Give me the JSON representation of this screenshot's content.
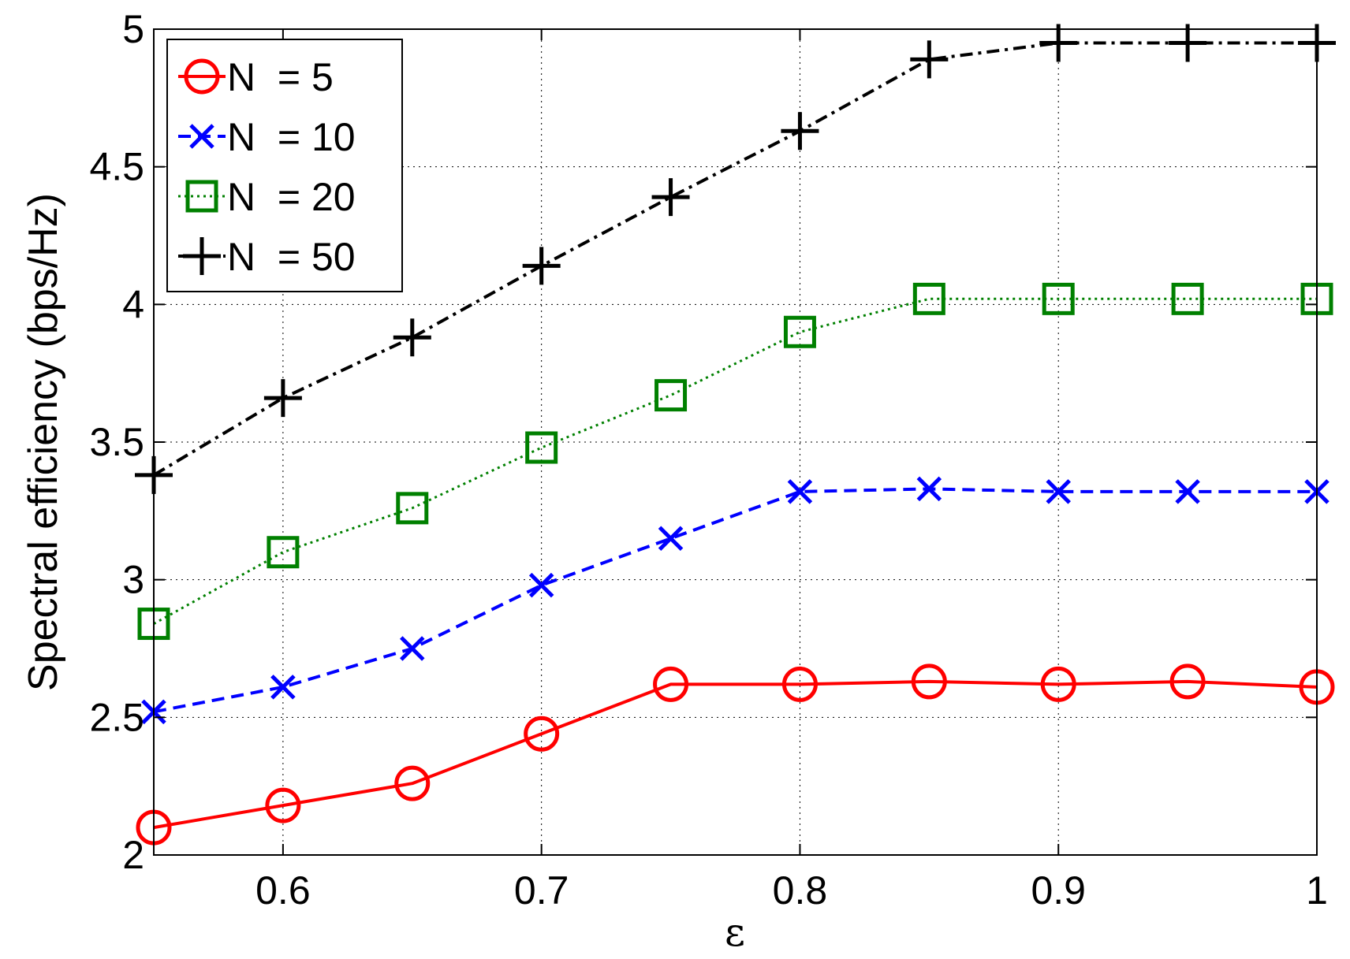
{
  "chart_data": {
    "type": "line",
    "xlabel": "ε",
    "ylabel": "Spectral efficiency (bps/Hz)",
    "xlim": [
      0.55,
      1.0
    ],
    "ylim": [
      2.0,
      5.0
    ],
    "xticks": [
      0.6,
      0.7,
      0.8,
      0.9,
      1.0
    ],
    "xtick_labels": [
      "0.6",
      "0.7",
      "0.8",
      "0.9",
      "1"
    ],
    "yticks": [
      2.0,
      2.5,
      3.0,
      3.5,
      4.0,
      4.5,
      5.0
    ],
    "ytick_labels": [
      "2",
      "2.5",
      "3",
      "3.5",
      "4",
      "4.5",
      "5"
    ],
    "grid": true,
    "legend_position": "top-left",
    "x": [
      0.55,
      0.6,
      0.65,
      0.7,
      0.75,
      0.8,
      0.85,
      0.9,
      0.95,
      1.0
    ],
    "series": [
      {
        "name": "N  = 5",
        "color": "#ff0000",
        "line_style": "solid",
        "marker": "circle",
        "values": [
          2.1,
          2.18,
          2.26,
          2.44,
          2.62,
          2.62,
          2.63,
          2.62,
          2.63,
          2.61
        ]
      },
      {
        "name": "N  = 10",
        "color": "#0000ff",
        "line_style": "dashed",
        "marker": "x",
        "values": [
          2.52,
          2.61,
          2.75,
          2.98,
          3.15,
          3.32,
          3.33,
          3.32,
          3.32,
          3.32
        ]
      },
      {
        "name": "N  = 20",
        "color": "#008000",
        "line_style": "dotted",
        "marker": "square",
        "values": [
          2.84,
          3.1,
          3.26,
          3.48,
          3.67,
          3.9,
          4.02,
          4.02,
          4.02,
          4.02
        ]
      },
      {
        "name": "N  = 50",
        "color": "#000000",
        "line_style": "dash-dot",
        "marker": "plus",
        "values": [
          3.38,
          3.66,
          3.88,
          4.14,
          4.39,
          4.63,
          4.89,
          4.95,
          4.95,
          4.95
        ]
      }
    ]
  }
}
